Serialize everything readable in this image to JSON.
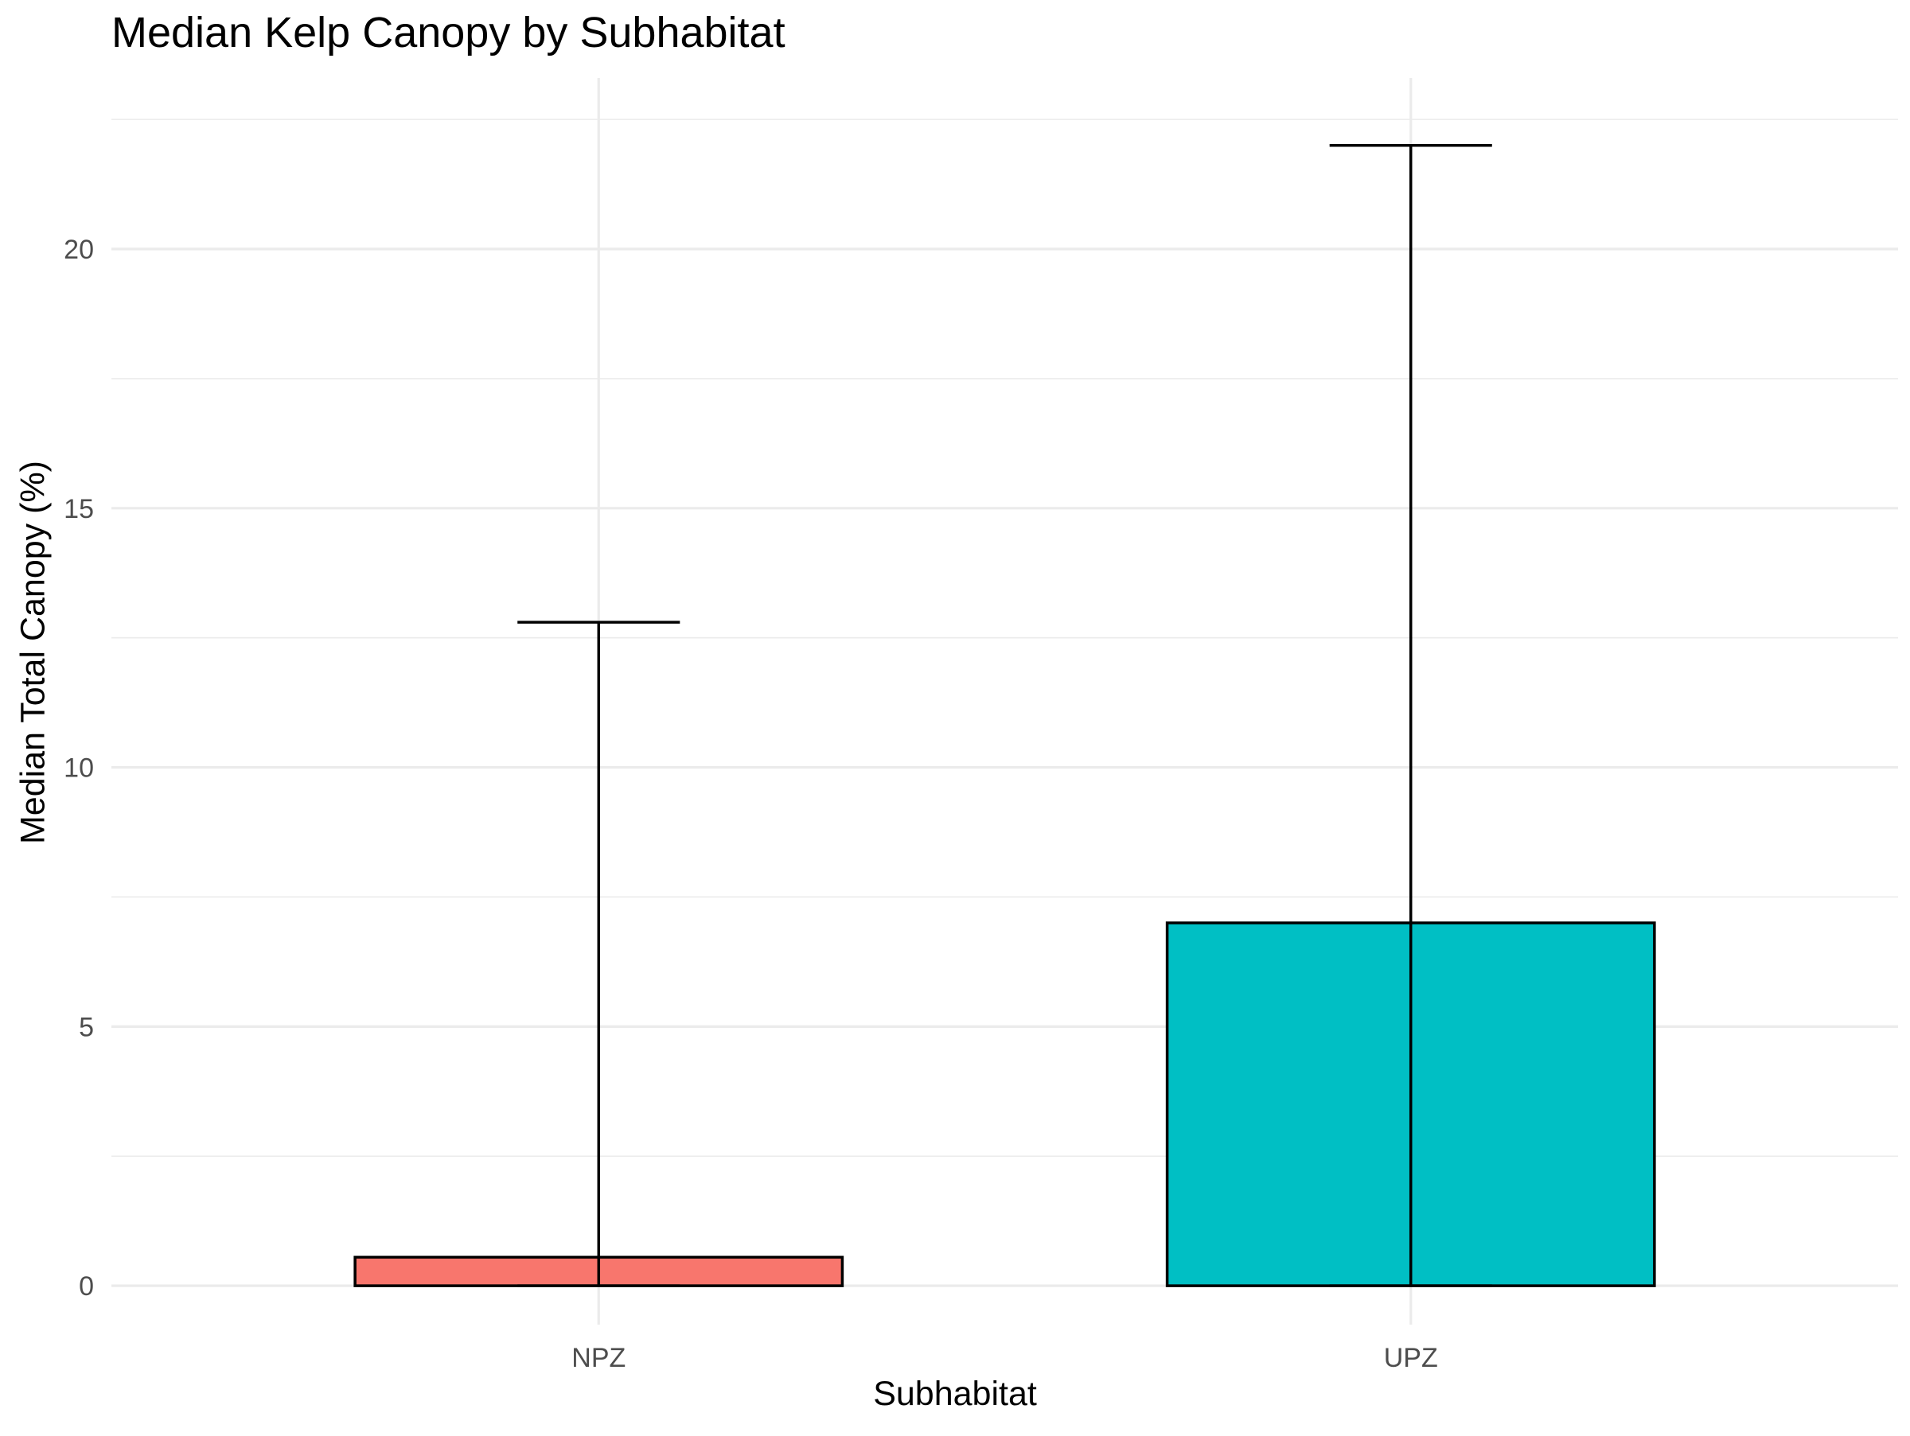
{
  "chart_data": {
    "type": "bar",
    "title": "Median Kelp Canopy by Subhabitat",
    "xlabel": "Subhabitat",
    "ylabel": "Median Total Canopy (%)",
    "categories": [
      "NPZ",
      "UPZ"
    ],
    "values": [
      0.55,
      7.0
    ],
    "error_upper": [
      12.8,
      22.0
    ],
    "error_lower": [
      0,
      0
    ],
    "colors": [
      "#F8766D",
      "#00BFC4"
    ],
    "ylim": [
      -0.75,
      23.3
    ],
    "yticks": [
      0,
      5,
      10,
      15,
      20
    ],
    "ytick_labels": [
      "0",
      "5",
      "10",
      "15",
      "20"
    ],
    "grid": true,
    "legend": "none"
  }
}
